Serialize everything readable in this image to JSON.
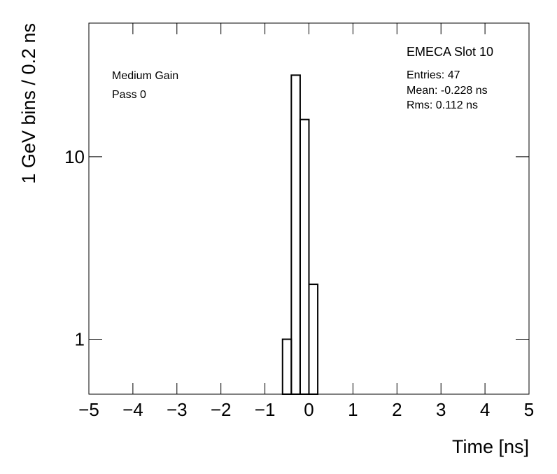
{
  "chart_data": {
    "type": "histogram",
    "bins": [
      -0.6,
      -0.4,
      -0.2,
      0,
      0.2
    ],
    "values": [
      1,
      28,
      16,
      2
    ],
    "color": "#000000",
    "xlabel": "Time [ns]",
    "ylabel": "1 GeV bins / 0.2 ns",
    "xlim": [
      -5,
      5
    ],
    "xticks": [
      {
        "value": -5,
        "label": "−5"
      },
      {
        "value": -4,
        "label": "−4"
      },
      {
        "value": -3,
        "label": "−3"
      },
      {
        "value": -2,
        "label": "−2"
      },
      {
        "value": -1,
        "label": "−1"
      },
      0,
      1,
      2,
      3,
      4,
      5
    ],
    "ylim": [
      0.5,
      54
    ],
    "yticks": [
      1,
      10
    ],
    "log_y": true,
    "annotations": [
      "EMECA Slot 10",
      "Medium Gain",
      "Pass 0",
      "Entries: 47",
      "Mean: -0.228 ns",
      "Rms: 0.112 ns"
    ]
  }
}
